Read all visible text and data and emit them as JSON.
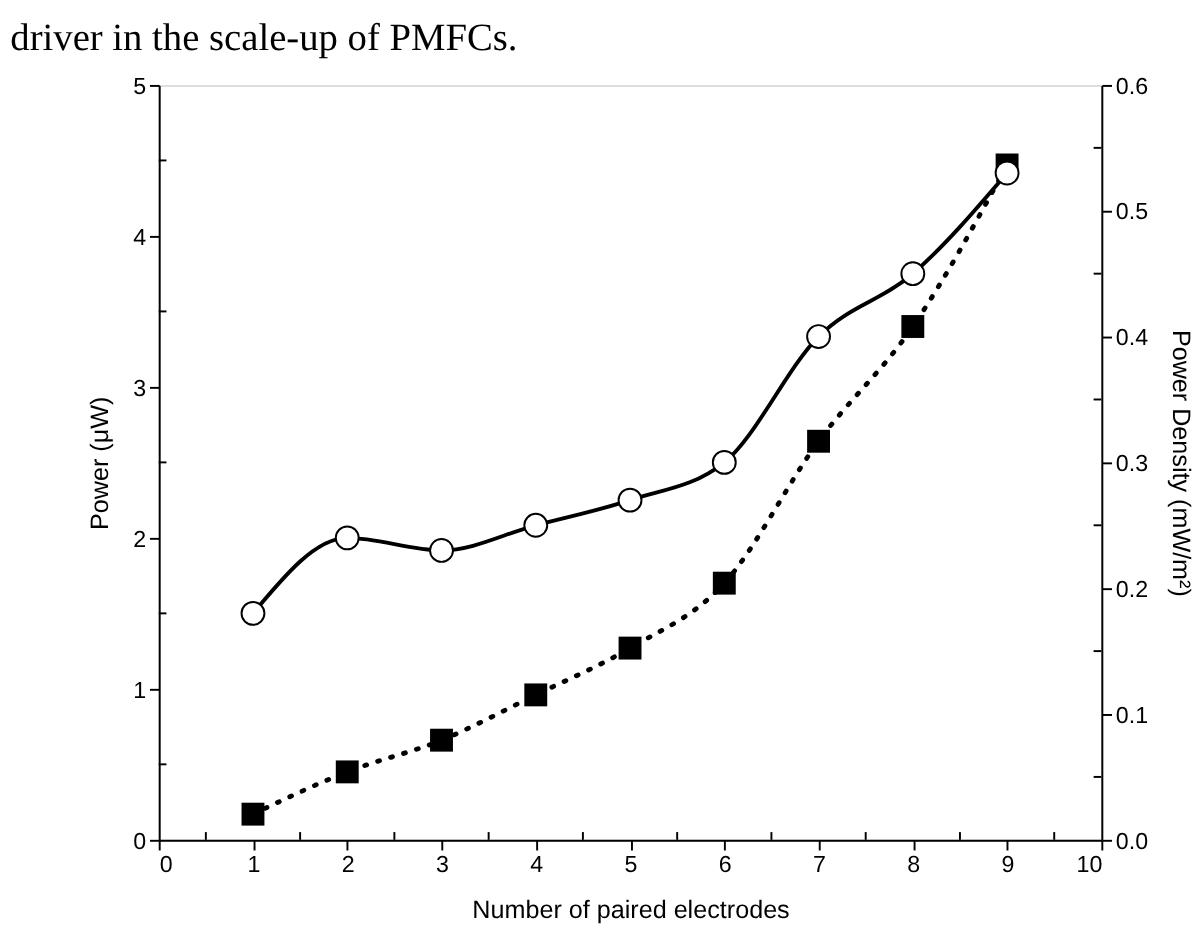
{
  "chart_data": {
    "type": "line",
    "annotations": [
      "driver in the scale-up of PMFCs."
    ],
    "xlabel": "Number of paired electrodes",
    "ylabel": "Power (μW)",
    "y2label": "Power Density (mW/m²)",
    "x": [
      1,
      2,
      3,
      4,
      5,
      6,
      7,
      8,
      9
    ],
    "series": [
      {
        "color": "#000000",
        "marker": "square",
        "line_style": "dotted",
        "values": [
          0.17,
          0.45,
          0.66,
          0.96,
          1.27,
          1.7,
          2.64,
          3.4,
          4.47
        ]
      },
      {
        "color": "#000000",
        "marker": "circle",
        "line_style": "solid",
        "axis": "y2",
        "values": [
          0.18,
          0.24,
          0.23,
          0.25,
          0.27,
          0.3,
          0.4,
          0.45,
          0.53
        ]
      }
    ],
    "xlim": [
      0,
      10
    ],
    "xticks": [
      0,
      {
        "value": 0.5,
        "label": null
      },
      1,
      {
        "value": 1.5,
        "label": null
      },
      2,
      {
        "value": 2.5,
        "label": null
      },
      3,
      {
        "value": 3.5,
        "label": null
      },
      4,
      {
        "value": 4.5,
        "label": null
      },
      5,
      {
        "value": 5.5,
        "label": null
      },
      6,
      {
        "value": 6.5,
        "label": null
      },
      7,
      {
        "value": 7.5,
        "label": null
      },
      8,
      {
        "value": 8.5,
        "label": null
      },
      9,
      {
        "value": 9.5,
        "label": null
      },
      10
    ],
    "ylim": [
      0,
      5
    ],
    "yticks": [
      0,
      {
        "value": 0.5,
        "label": null
      },
      1,
      {
        "value": 1.5,
        "label": null
      },
      2,
      {
        "value": 2.5,
        "label": null
      },
      3,
      {
        "value": 3.5,
        "label": null
      },
      4,
      {
        "value": 4.5,
        "label": null
      },
      5
    ],
    "y2lim": [
      0,
      0.6
    ],
    "y2ticks": [
      {
        "value": 0,
        "label": "0.0"
      },
      {
        "value": 0.05,
        "label": null
      },
      0.1,
      {
        "value": 0.15,
        "label": null
      },
      0.2,
      {
        "value": 0.25,
        "label": null
      },
      0.3,
      {
        "value": 0.35,
        "label": null
      },
      0.4,
      {
        "value": 0.45,
        "label": null
      },
      0.5,
      {
        "value": 0.55,
        "label": null
      },
      0.6
    ],
    "grid": false
  }
}
